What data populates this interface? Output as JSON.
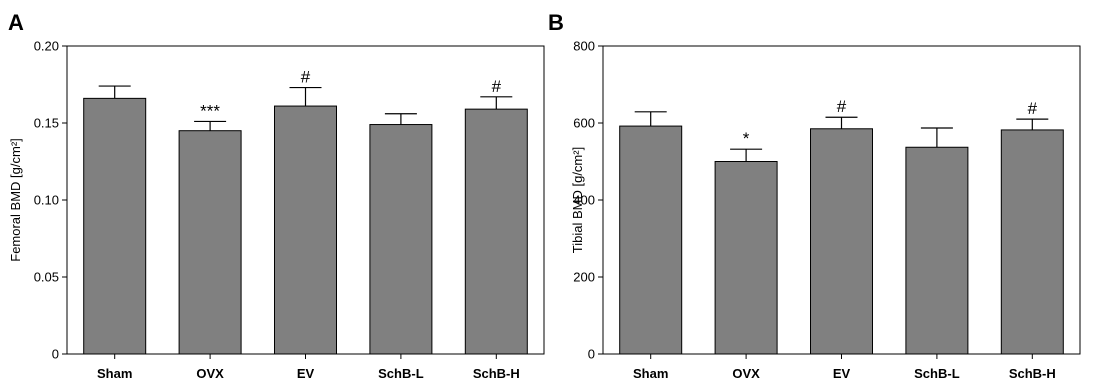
{
  "chart_data": [
    {
      "type": "bar",
      "panel": "A",
      "categories": [
        "Sham",
        "OVX",
        "EV",
        "SchB-L",
        "SchB-H"
      ],
      "values": [
        0.166,
        0.145,
        0.161,
        0.149,
        0.159
      ],
      "errors": [
        0.008,
        0.006,
        0.012,
        0.007,
        0.008
      ],
      "annotations": [
        "",
        "***",
        "#",
        "",
        "#"
      ],
      "ylabel": "Femoral BMD [g/cm²]",
      "ylim": [
        0,
        0.2
      ],
      "yticks": [
        0,
        0.05,
        0.1,
        0.15,
        0.2
      ],
      "ytick_labels": [
        "0",
        "0.05",
        "0.10",
        "0.15",
        "0.20"
      ],
      "bar_color": "#808080"
    },
    {
      "type": "bar",
      "panel": "B",
      "categories": [
        "Sham",
        "OVX",
        "EV",
        "SchB-L",
        "SchB-H"
      ],
      "values": [
        592,
        500,
        585,
        537,
        582
      ],
      "errors": [
        37,
        32,
        30,
        50,
        28
      ],
      "annotations": [
        "",
        "*",
        "#",
        "",
        "#"
      ],
      "ylabel": "Tibial BMD [g/cm²]",
      "ylim": [
        0,
        800
      ],
      "yticks": [
        0,
        200,
        400,
        600,
        800
      ],
      "ytick_labels": [
        "0",
        "200",
        "400",
        "600",
        "800"
      ],
      "bar_color": "#808080"
    }
  ]
}
